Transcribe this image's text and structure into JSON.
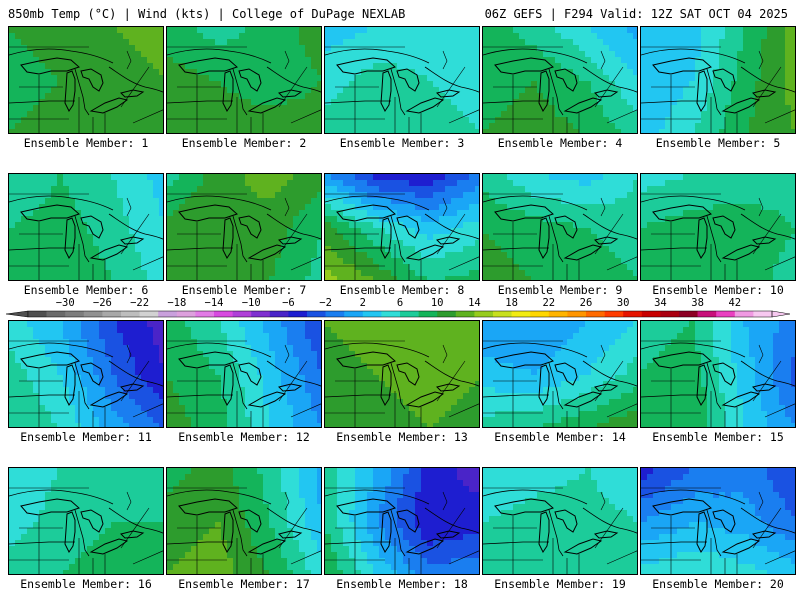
{
  "header": {
    "left_title": "850mb Temp (°C) | Wind (kts) | College of DuPage NEXLAB",
    "right_title": "06Z GEFS | F294 Valid: 12Z SAT OCT 04 2025"
  },
  "panels": [
    {
      "label": "Ensemble Member: 1",
      "temps": [
        [
          12,
          13,
          14,
          15
        ],
        [
          11,
          12,
          13,
          14
        ],
        [
          12,
          13,
          14,
          14
        ]
      ]
    },
    {
      "label": "Ensemble Member: 2",
      "temps": [
        [
          11,
          9,
          11,
          13
        ],
        [
          13,
          12,
          11,
          12
        ],
        [
          13,
          13,
          13,
          13
        ]
      ]
    },
    {
      "label": "Ensemble Member: 3",
      "temps": [
        [
          5,
          6,
          7,
          7
        ],
        [
          7,
          9,
          8,
          7
        ],
        [
          9,
          10,
          9,
          8
        ]
      ]
    },
    {
      "label": "Ensemble Member: 4",
      "temps": [
        [
          11,
          9,
          6,
          3
        ],
        [
          11,
          12,
          10,
          6
        ],
        [
          12,
          13,
          12,
          9
        ]
      ]
    },
    {
      "label": "Ensemble Member: 5",
      "temps": [
        [
          6,
          5,
          10,
          15
        ],
        [
          4,
          6,
          11,
          15
        ],
        [
          5,
          8,
          12,
          14
        ]
      ]
    },
    {
      "label": "Ensemble Member: 6",
      "temps": [
        [
          8,
          10,
          8,
          5
        ],
        [
          10,
          11,
          9,
          6
        ],
        [
          11,
          12,
          10,
          7
        ]
      ]
    },
    {
      "label": "Ensemble Member: 7",
      "temps": [
        [
          9,
          13,
          15,
          13
        ],
        [
          13,
          14,
          13,
          10
        ],
        [
          14,
          14,
          12,
          9
        ]
      ]
    },
    {
      "label": "Ensemble Member: 8",
      "temps": [
        [
          2,
          -3,
          -4,
          1
        ],
        [
          13,
          8,
          5,
          7
        ],
        [
          17,
          14,
          10,
          11
        ]
      ]
    },
    {
      "label": "Ensemble Member: 9",
      "temps": [
        [
          9,
          6,
          5,
          8
        ],
        [
          12,
          11,
          10,
          9
        ],
        [
          13,
          12,
          11,
          10
        ]
      ]
    },
    {
      "label": "Ensemble Member: 10",
      "temps": [
        [
          7,
          8,
          9,
          9
        ],
        [
          10,
          11,
          11,
          10
        ],
        [
          12,
          12,
          11,
          9
        ]
      ]
    },
    {
      "label": "Ensemble Member: 11",
      "temps": [
        [
          7,
          4,
          -2,
          -5
        ],
        [
          9,
          6,
          0,
          -4
        ],
        [
          10,
          8,
          3,
          0
        ]
      ]
    },
    {
      "label": "Ensemble Member: 12",
      "temps": [
        [
          11,
          8,
          3,
          -2
        ],
        [
          12,
          10,
          5,
          0
        ],
        [
          13,
          11,
          6,
          2
        ]
      ]
    },
    {
      "label": "Ensemble Member: 13",
      "temps": [
        [
          14,
          15,
          15,
          14
        ],
        [
          13,
          14,
          15,
          14
        ],
        [
          12,
          13,
          14,
          13
        ]
      ]
    },
    {
      "label": "Ensemble Member: 14",
      "temps": [
        [
          2,
          2,
          4,
          6
        ],
        [
          5,
          4,
          6,
          9
        ],
        [
          9,
          10,
          12,
          14
        ]
      ]
    },
    {
      "label": "Ensemble Member: 15",
      "temps": [
        [
          9,
          10,
          4,
          1
        ],
        [
          10,
          11,
          5,
          -1
        ],
        [
          11,
          12,
          6,
          2
        ]
      ]
    },
    {
      "label": "Ensemble Member: 16",
      "temps": [
        [
          6,
          8,
          10,
          9
        ],
        [
          7,
          9,
          10,
          10
        ],
        [
          9,
          10,
          11,
          10
        ]
      ]
    },
    {
      "label": "Ensemble Member: 17",
      "temps": [
        [
          11,
          13,
          9,
          3
        ],
        [
          13,
          14,
          10,
          4
        ],
        [
          14,
          15,
          12,
          7
        ]
      ]
    },
    {
      "label": "Ensemble Member: 18",
      "temps": [
        [
          9,
          4,
          -3,
          -5
        ],
        [
          10,
          2,
          -4,
          -3
        ],
        [
          12,
          6,
          1,
          2
        ]
      ]
    },
    {
      "label": "Ensemble Member: 19",
      "temps": [
        [
          6,
          7,
          8,
          6
        ],
        [
          8,
          9,
          9,
          8
        ],
        [
          9,
          10,
          9,
          8
        ]
      ]
    },
    {
      "label": "Ensemble Member: 20",
      "temps": [
        [
          -3,
          0,
          1,
          -2
        ],
        [
          2,
          4,
          3,
          0
        ],
        [
          7,
          8,
          7,
          5
        ]
      ]
    }
  ],
  "colorbar": {
    "tick_labels": [
      "−30",
      "−26",
      "−22",
      "−18",
      "−14",
      "−10",
      "−6",
      "−2",
      "2",
      "6",
      "10",
      "14",
      "18",
      "22",
      "26",
      "30",
      "34",
      "38",
      "42"
    ],
    "bins": [
      -32,
      -30,
      -28,
      -26,
      -24,
      -22,
      -20,
      -18,
      -16,
      -14,
      -12,
      -10,
      -8,
      -6,
      -4,
      -2,
      0,
      2,
      4,
      6,
      8,
      10,
      12,
      14,
      16,
      18,
      20,
      22,
      24,
      26,
      28,
      30,
      32,
      34,
      36,
      38,
      40,
      42,
      44
    ],
    "colors": [
      "#4f4f4f",
      "#6a6a6a",
      "#7d7d7d",
      "#919191",
      "#a8a8a8",
      "#bdbdbd",
      "#d2d2d2",
      "#c9a0dc",
      "#dda0dd",
      "#e27be6",
      "#d84ae0",
      "#b040d8",
      "#8030d0",
      "#4a24c8",
      "#1e1ed0",
      "#1a52e2",
      "#1a7ef0",
      "#1aa6f6",
      "#22c6f2",
      "#2fddd8",
      "#1ccc9a",
      "#14b45a",
      "#2d9c2d",
      "#5fb21f",
      "#97cc1d",
      "#c8e01d",
      "#f2ec12",
      "#ffd700",
      "#ffb400",
      "#ff9500",
      "#ff6a00",
      "#ff3c00",
      "#e61400",
      "#c80000",
      "#aa0010",
      "#8c0024",
      "#c8107a",
      "#ea40c0",
      "#f09ae2",
      "#f7c8f0"
    ]
  }
}
